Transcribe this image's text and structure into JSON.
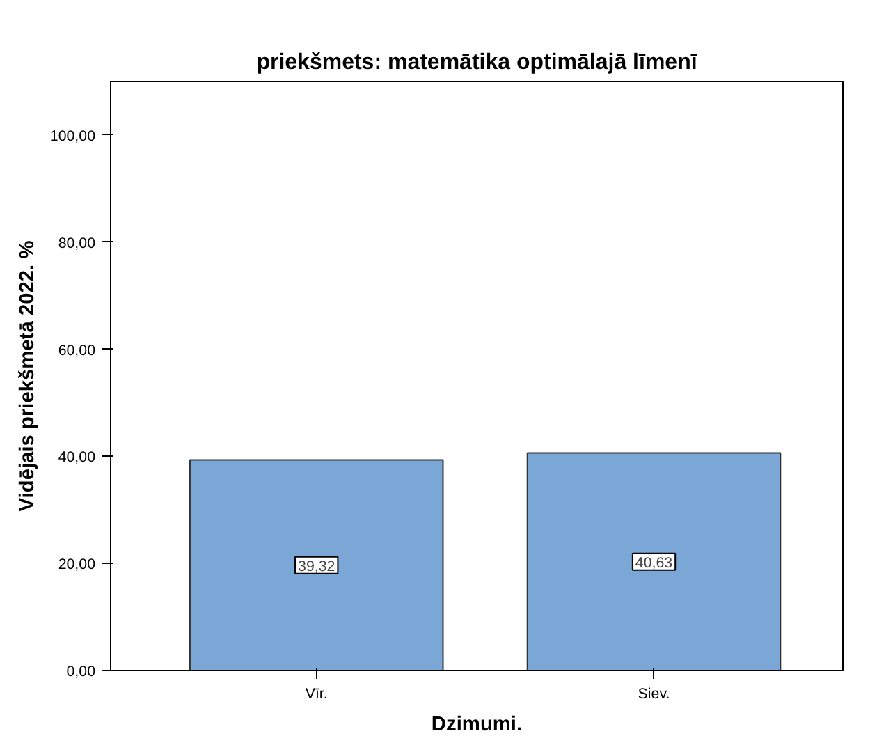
{
  "chart_data": {
    "type": "bar",
    "title": "priekšmets: matemātika optimālajā līmenī",
    "xlabel": "Dzimumi.",
    "ylabel": "Vidējais priekšmetā 2022. %",
    "categories": [
      "Vīr.",
      "Siev."
    ],
    "values": [
      39.32,
      40.63
    ],
    "value_labels": [
      "39,32",
      "40,63"
    ],
    "color": "#7aa7d6",
    "ylim": [
      0,
      110
    ],
    "yticks": [
      {
        "value": 0,
        "label": "0,00"
      },
      {
        "value": 20,
        "label": "20,00"
      },
      {
        "value": 40,
        "label": "40,00"
      },
      {
        "value": 60,
        "label": "60,00"
      },
      {
        "value": 80,
        "label": "80,00"
      },
      {
        "value": 100,
        "label": "100,00"
      }
    ],
    "grid": false
  }
}
